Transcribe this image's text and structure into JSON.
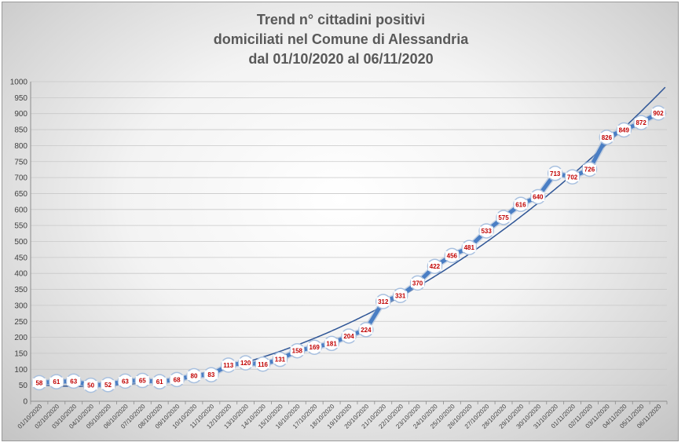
{
  "chart_data": {
    "type": "line",
    "title_lines": [
      "Trend n° cittadini positivi",
      "domiciliati nel Comune di Alessandria",
      "dal 01/10/2020 al 06/11/2020"
    ],
    "xlabel": "",
    "ylabel": "",
    "ylim": [
      0,
      1000
    ],
    "yticks": [
      0,
      50,
      100,
      150,
      200,
      250,
      300,
      350,
      400,
      450,
      500,
      550,
      600,
      650,
      700,
      750,
      800,
      850,
      900,
      950,
      1000
    ],
    "grid": true,
    "legend": "none",
    "categories": [
      "01/10/2020",
      "02/10/2020",
      "03/10/2020",
      "04/10/2020",
      "05/10/2020",
      "06/10/2020",
      "07/10/2020",
      "08/10/2020",
      "09/10/2020",
      "10/10/2020",
      "11/10/2020",
      "12/10/2020",
      "13/10/2020",
      "14/10/2020",
      "15/10/2020",
      "16/10/2020",
      "17/10/2020",
      "18/10/2020",
      "19/10/2020",
      "20/10/2020",
      "21/10/2020",
      "22/10/2020",
      "23/10/2020",
      "24/10/2020",
      "25/10/2020",
      "26/10/2020",
      "27/10/2020",
      "28/10/2020",
      "29/10/2020",
      "30/10/2020",
      "31/10/2020",
      "01/11/2020",
      "02/11/2020",
      "03/11/2020",
      "04/11/2020",
      "05/11/2020",
      "06/11/2020"
    ],
    "series": [
      {
        "values": [
          58,
          61,
          63,
          50,
          52,
          63,
          65,
          61,
          68,
          80,
          83,
          113,
          120,
          116,
          131,
          158,
          169,
          181,
          204,
          224,
          312,
          331,
          370,
          422,
          456,
          481,
          533,
          575,
          616,
          640,
          713,
          702,
          726,
          826,
          849,
          872,
          902
        ],
        "color": "#4a7ec4"
      }
    ],
    "trendline": {
      "type": "polynomial",
      "color": "#2e5596"
    }
  }
}
